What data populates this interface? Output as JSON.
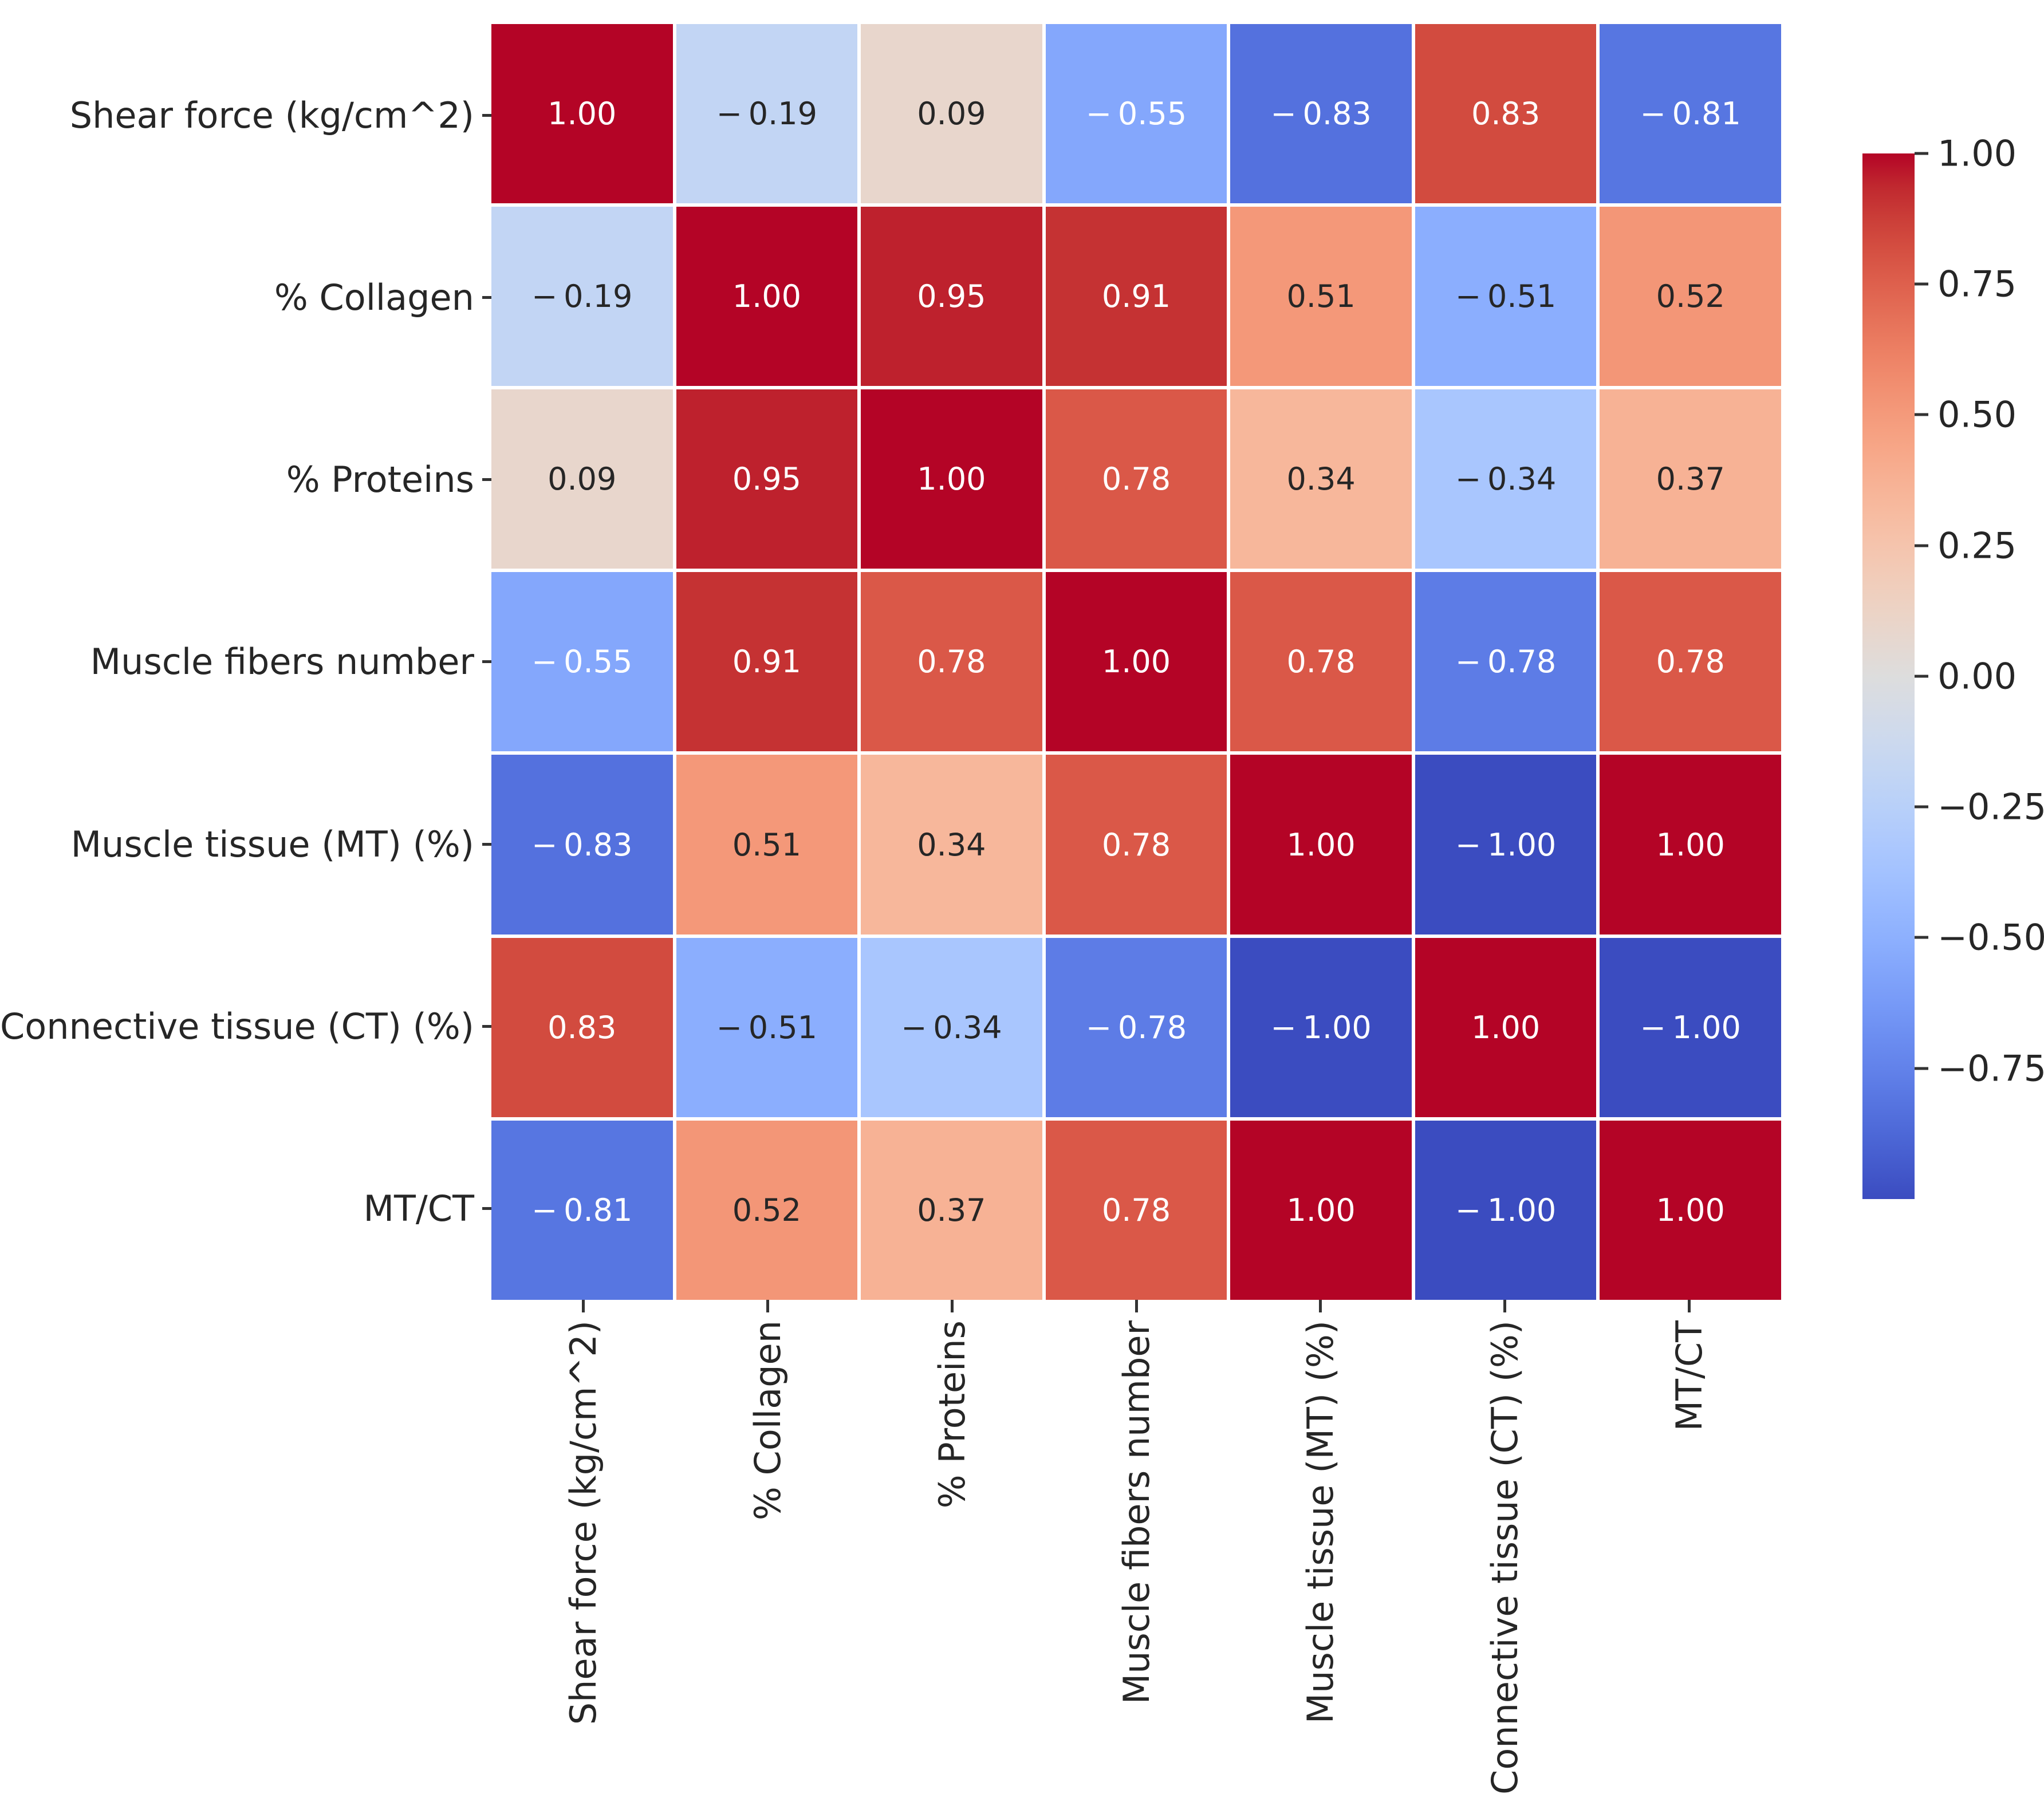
{
  "figure": {
    "background": "#ffffff"
  },
  "chart_data": {
    "type": "heatmap",
    "title": "",
    "variables": [
      "Shear force (kg/cm^2)",
      "% Collagen",
      "% Proteins",
      "Muscle fibers number",
      "Muscle tissue (MT) (%)",
      "Connective tissue (CT) (%)",
      "MT/CT"
    ],
    "matrix": [
      [
        1.0,
        -0.19,
        0.09,
        -0.55,
        -0.83,
        0.83,
        -0.81
      ],
      [
        -0.19,
        1.0,
        0.95,
        0.91,
        0.51,
        -0.51,
        0.52
      ],
      [
        0.09,
        0.95,
        1.0,
        0.78,
        0.34,
        -0.34,
        0.37
      ],
      [
        -0.55,
        0.91,
        0.78,
        1.0,
        0.78,
        -0.78,
        0.78
      ],
      [
        -0.83,
        0.51,
        0.34,
        0.78,
        1.0,
        -1.0,
        1.0
      ],
      [
        0.83,
        -0.51,
        -0.34,
        -0.78,
        -1.0,
        1.0,
        -1.0
      ],
      [
        -0.81,
        0.52,
        0.37,
        0.78,
        1.0,
        -1.0,
        1.0
      ]
    ],
    "vmin": -1,
    "vmax": 1,
    "annotation_decimals": 2,
    "grid_gap_color": "#ffffff",
    "legend_position": "right",
    "colorbar": {
      "tick_labels": [
        "1.00",
        "0.75",
        "0.50",
        "0.25",
        "0.00",
        "−0.25",
        "−0.50",
        "−0.75"
      ],
      "tick_values": [
        1.0,
        0.75,
        0.5,
        0.25,
        0.0,
        -0.25,
        -0.5,
        -0.75
      ]
    },
    "colormap": {
      "name": "coolwarm",
      "min_color": "#3b4cc0",
      "mid_color": "#dddddd",
      "max_color": "#b40426",
      "stops_rgb": [
        [
          59,
          76,
          192
        ],
        [
          68,
          90,
          204
        ],
        [
          77,
          104,
          215
        ],
        [
          87,
          117,
          225
        ],
        [
          98,
          130,
          234
        ],
        [
          108,
          142,
          241
        ],
        [
          119,
          154,
          247
        ],
        [
          130,
          165,
          251
        ],
        [
          141,
          176,
          254
        ],
        [
          152,
          185,
          255
        ],
        [
          163,
          194,
          255
        ],
        [
          174,
          201,
          253
        ],
        [
          184,
          208,
          249
        ],
        [
          194,
          213,
          244
        ],
        [
          204,
          217,
          238
        ],
        [
          213,
          219,
          230
        ],
        [
          221,
          221,
          221
        ],
        [
          229,
          216,
          209
        ],
        [
          236,
          211,
          197
        ],
        [
          241,
          204,
          185
        ],
        [
          245,
          196,
          173
        ],
        [
          247,
          187,
          160
        ],
        [
          247,
          177,
          148
        ],
        [
          247,
          166,
          135
        ],
        [
          244,
          154,
          123
        ],
        [
          241,
          141,
          111
        ],
        [
          236,
          127,
          99
        ],
        [
          229,
          112,
          88
        ],
        [
          222,
          96,
          77
        ],
        [
          213,
          80,
          66
        ],
        [
          203,
          62,
          56
        ],
        [
          192,
          40,
          47
        ],
        [
          180,
          4,
          38
        ]
      ]
    },
    "text_colors": {
      "annotation_light": "#ffffff",
      "annotation_dark": "#262626",
      "axis_label_color": "#262626"
    }
  }
}
